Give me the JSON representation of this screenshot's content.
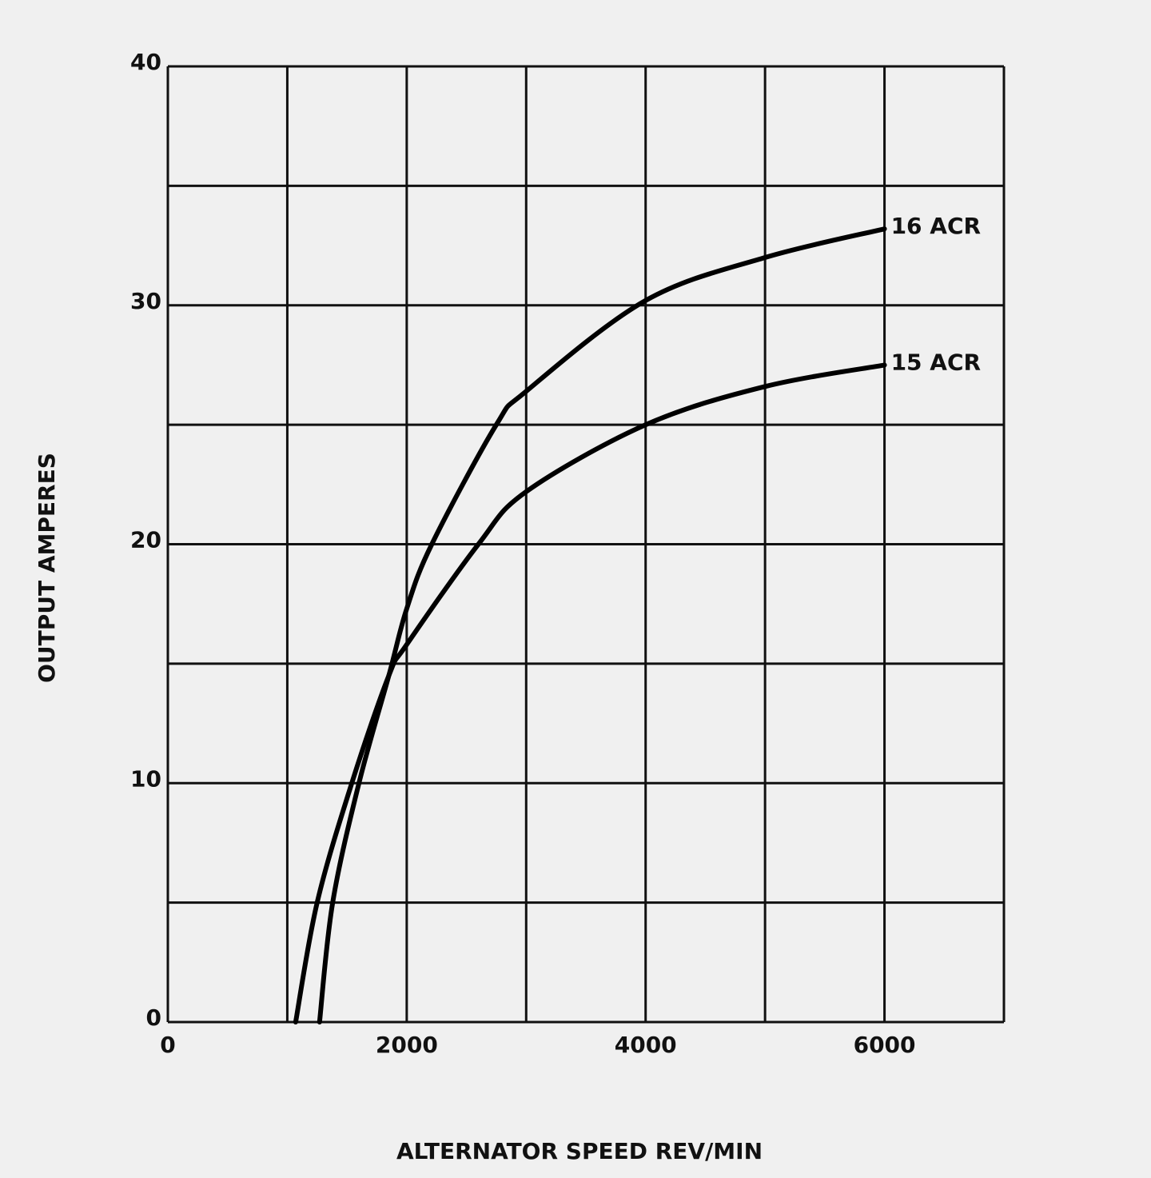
{
  "chart_data": {
    "type": "line",
    "xlabel": "ALTERNATOR SPEED REV/MIN",
    "ylabel": "OUTPUT AMPERES",
    "xlim": [
      0,
      7000
    ],
    "ylim": [
      0,
      40
    ],
    "xticks": [
      0,
      2000,
      4000,
      6000
    ],
    "yticks": [
      0,
      10,
      20,
      30,
      40
    ],
    "xgrid": [
      0,
      1000,
      2000,
      3000,
      4000,
      5000,
      6000,
      7000
    ],
    "ygrid": [
      0,
      5,
      10,
      15,
      20,
      25,
      30,
      35,
      40
    ],
    "grid": true,
    "series": [
      {
        "name": "16 ACR",
        "color": "#000000",
        "x": [
          1270,
          1380,
          1600,
          1850,
          2000,
          2210,
          2750,
          3000,
          4000,
          5000,
          6000
        ],
        "values": [
          0,
          5,
          10,
          14.5,
          17.3,
          20,
          25,
          26.4,
          30.2,
          32,
          33.2
        ]
      },
      {
        "name": "15 ACR",
        "color": "#000000",
        "x": [
          1070,
          1250,
          1540,
          1850,
          2000,
          2600,
          3000,
          4000,
          5000,
          6000
        ],
        "values": [
          0,
          5,
          10,
          14.5,
          15.8,
          20,
          22.2,
          25,
          26.6,
          27.5
        ]
      }
    ]
  }
}
